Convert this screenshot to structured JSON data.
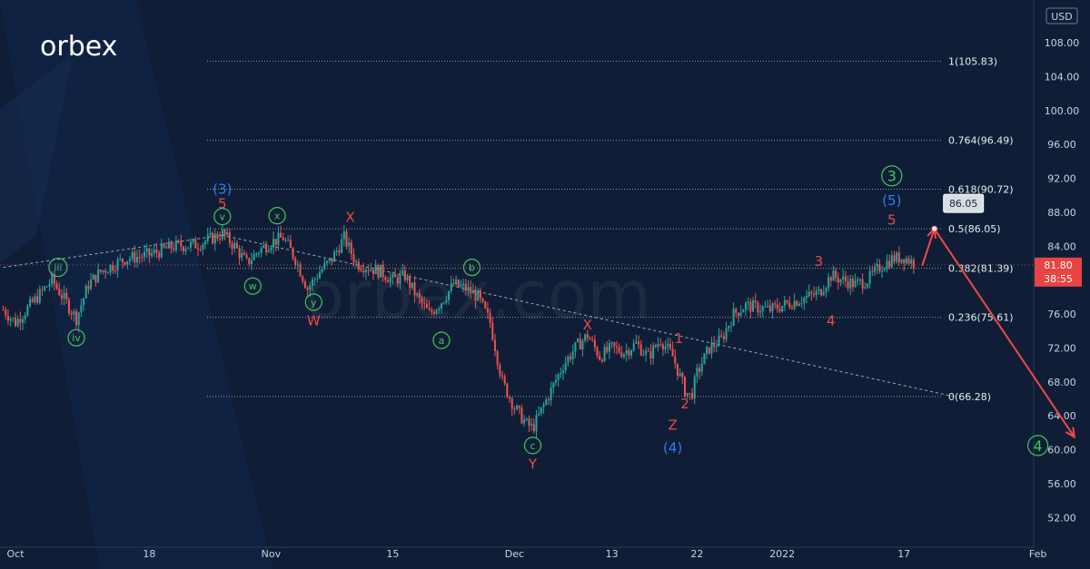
{
  "logo": {
    "text": "orbex",
    "watermark": "orbex.com"
  },
  "currency": "USD",
  "colors": {
    "background": "#0f1e36",
    "wave_red": "#f04848",
    "wave_blue": "#2f7bf5",
    "wave_green": "#45c45a",
    "candle_up": "#26a69a",
    "candle_down": "#ef5350",
    "price_tag": "#e84444",
    "callout_bg": "#d9dde4"
  },
  "chart_data": {
    "type": "candlestick",
    "y_axis": {
      "ylim": [
        48.5,
        112.5
      ],
      "ticks": [
        "52.00",
        "56.00",
        "60.00",
        "64.00",
        "68.00",
        "72.00",
        "76.00",
        "80.00",
        "84.00",
        "88.00",
        "92.00",
        "96.00",
        "100.00",
        "104.00",
        "108.00"
      ]
    },
    "x_axis": {
      "ticks": [
        {
          "label": "Oct",
          "x": 0
        },
        {
          "label": "18",
          "x": 11
        },
        {
          "label": "Nov",
          "x": 21
        },
        {
          "label": "15",
          "x": 31
        },
        {
          "label": "Dec",
          "x": 41
        },
        {
          "label": "13",
          "x": 49
        },
        {
          "label": "22",
          "x": 56
        },
        {
          "label": "2022",
          "x": 63
        },
        {
          "label": "17",
          "x": 73
        },
        {
          "label": "Feb",
          "x": 84
        }
      ]
    },
    "price_path": [
      [
        -1,
        76.5
      ],
      [
        0,
        75
      ],
      [
        3,
        80
      ],
      [
        5,
        75.5
      ],
      [
        6,
        79.5
      ],
      [
        7,
        81
      ],
      [
        9,
        82.5
      ],
      [
        11,
        83
      ],
      [
        13,
        84
      ],
      [
        15,
        84.2
      ],
      [
        17,
        85.5
      ],
      [
        18,
        84
      ],
      [
        19,
        82
      ],
      [
        20,
        83.5
      ],
      [
        21,
        84.5
      ],
      [
        22,
        85
      ],
      [
        23,
        82.5
      ],
      [
        24,
        79
      ],
      [
        25,
        81
      ],
      [
        26,
        82.5
      ],
      [
        27,
        85
      ],
      [
        28,
        82
      ],
      [
        30,
        81
      ],
      [
        31,
        80
      ],
      [
        32,
        80.5
      ],
      [
        33,
        78
      ],
      [
        34,
        76
      ],
      [
        35,
        77.5
      ],
      [
        36,
        79.5
      ],
      [
        37,
        79
      ],
      [
        38,
        78
      ],
      [
        39,
        75
      ],
      [
        40,
        68
      ],
      [
        41,
        65
      ],
      [
        42,
        63
      ],
      [
        42.5,
        62.5
      ],
      [
        43,
        64
      ],
      [
        44,
        67
      ],
      [
        45,
        70
      ],
      [
        46,
        72
      ],
      [
        47,
        73.5
      ],
      [
        48,
        71
      ],
      [
        49,
        72
      ],
      [
        50,
        71.5
      ],
      [
        51,
        72.5
      ],
      [
        52,
        71
      ],
      [
        53,
        73
      ],
      [
        54,
        71
      ],
      [
        55,
        67
      ],
      [
        55.5,
        66.2
      ],
      [
        56,
        69
      ],
      [
        57,
        72
      ],
      [
        58,
        73
      ],
      [
        59,
        76
      ],
      [
        60,
        77
      ],
      [
        62,
        76.5
      ],
      [
        63,
        77
      ],
      [
        64,
        77.5
      ],
      [
        65,
        78
      ],
      [
        66,
        78.5
      ],
      [
        67,
        80.5
      ],
      [
        68,
        80
      ],
      [
        69,
        79.5
      ],
      [
        70,
        80
      ],
      [
        71,
        81.5
      ],
      [
        72,
        82.5
      ],
      [
        73,
        82.7
      ],
      [
        74,
        81.8
      ]
    ],
    "last_price": "81.80",
    "countdown": "38:55",
    "fib_levels": [
      {
        "label": "1(105.83)",
        "value": 105.83
      },
      {
        "label": "0.764(96.49)",
        "value": 96.49
      },
      {
        "label": "0.618(90.72)",
        "value": 90.72
      },
      {
        "label": "0.5(86.05)",
        "value": 86.05
      },
      {
        "label": "0.382(81.39)",
        "value": 81.39
      },
      {
        "label": "0.236(75.61)",
        "value": 75.61
      },
      {
        "label": "0(66.28)",
        "value": 66.28
      }
    ],
    "trendlines": [
      {
        "from": [
          -1,
          81.5
        ],
        "to": [
          17,
          85.3
        ]
      },
      {
        "from": [
          17,
          85.3
        ],
        "to": [
          77,
          66.3
        ]
      }
    ],
    "projection": {
      "points": [
        [
          74.5,
          81.7
        ],
        [
          75.5,
          86.05
        ],
        [
          87,
          61.5
        ]
      ],
      "callout": "86.05"
    },
    "wave_labels": [
      {
        "text": "(3)",
        "color": "blue",
        "x": 17,
        "y": 90.7
      },
      {
        "text": "5",
        "color": "red",
        "x": 17,
        "y": 89
      },
      {
        "text": "v",
        "color": "green",
        "circle": true,
        "x": 17,
        "y": 87.5
      },
      {
        "text": "iii",
        "color": "green",
        "circle": true,
        "x": 3.5,
        "y": 81.5
      },
      {
        "text": "iv",
        "color": "green",
        "circle": true,
        "x": 5,
        "y": 73.2
      },
      {
        "text": "x",
        "color": "green",
        "circle": true,
        "x": 21.5,
        "y": 87.6
      },
      {
        "text": "w",
        "color": "green",
        "circle": true,
        "x": 19.5,
        "y": 79.3
      },
      {
        "text": "y",
        "color": "green",
        "circle": true,
        "x": 24.5,
        "y": 77.4
      },
      {
        "text": "W",
        "color": "red",
        "x": 24.5,
        "y": 75.2
      },
      {
        "text": "X",
        "color": "red",
        "x": 27.5,
        "y": 87.4
      },
      {
        "text": "a",
        "color": "green",
        "circle": true,
        "x": 35,
        "y": 72.9
      },
      {
        "text": "b",
        "color": "green",
        "circle": true,
        "x": 37.5,
        "y": 81.5
      },
      {
        "text": "c",
        "color": "green",
        "circle": true,
        "x": 42.5,
        "y": 60.5
      },
      {
        "text": "Y",
        "color": "red",
        "x": 42.5,
        "y": 58.3
      },
      {
        "text": "X",
        "color": "red",
        "x": 47,
        "y": 74.7
      },
      {
        "text": "1",
        "color": "red",
        "x": 54.5,
        "y": 73.1
      },
      {
        "text": "2",
        "color": "red",
        "x": 55,
        "y": 65.4
      },
      {
        "text": "Z",
        "color": "red",
        "x": 54,
        "y": 62.9
      },
      {
        "text": "(4)",
        "color": "blue",
        "x": 54,
        "y": 60.2
      },
      {
        "text": "3",
        "color": "red",
        "x": 66,
        "y": 82.2
      },
      {
        "text": "4",
        "color": "red",
        "x": 67,
        "y": 75.2
      },
      {
        "text": "3",
        "color": "green",
        "circle": true,
        "x": 72,
        "y": 92.3
      },
      {
        "text": "(5)",
        "color": "blue",
        "x": 72,
        "y": 89.4
      },
      {
        "text": "5",
        "color": "red",
        "x": 72,
        "y": 87.1
      },
      {
        "text": "4",
        "color": "green",
        "circle": true,
        "x": 84,
        "y": 60.5
      }
    ]
  }
}
